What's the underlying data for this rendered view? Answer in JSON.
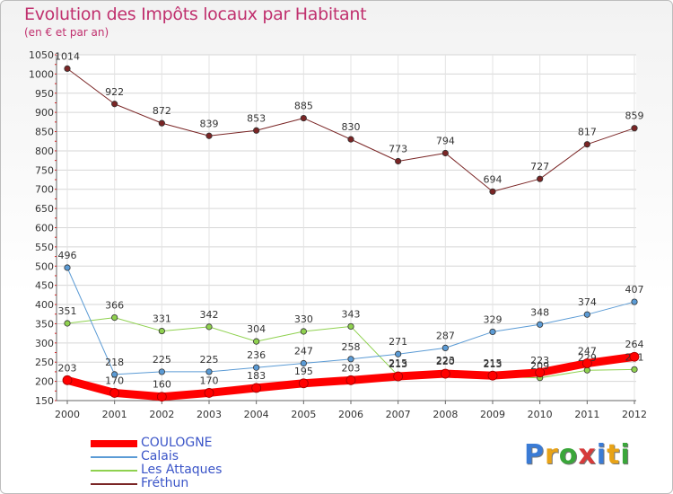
{
  "header": {
    "title": "Evolution des Impôts locaux par Habitant",
    "subtitle": "(en € et par an)"
  },
  "logo": {
    "letters": [
      "P",
      "r",
      "o",
      "x",
      "i",
      "t",
      "i"
    ],
    "colors": [
      "#3a7bd5",
      "#e8a317",
      "#3aa63a",
      "#d63a3a",
      "#3a7bd5",
      "#e8a317",
      "#3aa63a"
    ]
  },
  "chart_data": {
    "type": "line",
    "title": "Evolution des Impôts locaux par Habitant",
    "subtitle": "(en € et par an)",
    "x": [
      "2000",
      "2001",
      "2002",
      "2003",
      "2004",
      "2005",
      "2006",
      "2007",
      "2008",
      "2009",
      "2010",
      "2011",
      "2012"
    ],
    "ylim": [
      150,
      1050
    ],
    "yticks": [
      150,
      200,
      250,
      300,
      350,
      400,
      450,
      500,
      550,
      600,
      650,
      700,
      750,
      800,
      850,
      900,
      950,
      1000,
      1050
    ],
    "grid": true,
    "legend_position": "bottom-left",
    "series": [
      {
        "name": "Fréthun",
        "color": "#7a2525",
        "width": 1,
        "values": [
          1014,
          922,
          872,
          839,
          853,
          885,
          830,
          773,
          794,
          694,
          727,
          817,
          859
        ]
      },
      {
        "name": "Les Attaques",
        "color": "#8fd14f",
        "width": 1,
        "values": [
          351,
          366,
          331,
          342,
          304,
          330,
          343,
          215,
          223,
          213,
          209,
          229,
          231
        ]
      },
      {
        "name": "Calais",
        "color": "#5b9bd5",
        "width": 1,
        "values": [
          496,
          218,
          225,
          225,
          236,
          247,
          258,
          271,
          287,
          329,
          348,
          374,
          407
        ]
      },
      {
        "name": "COULOGNE",
        "color": "#ff0000",
        "width": 9,
        "values": [
          203,
          170,
          160,
          170,
          183,
          195,
          203,
          213,
          220,
          215,
          223,
          247,
          264
        ]
      }
    ]
  }
}
